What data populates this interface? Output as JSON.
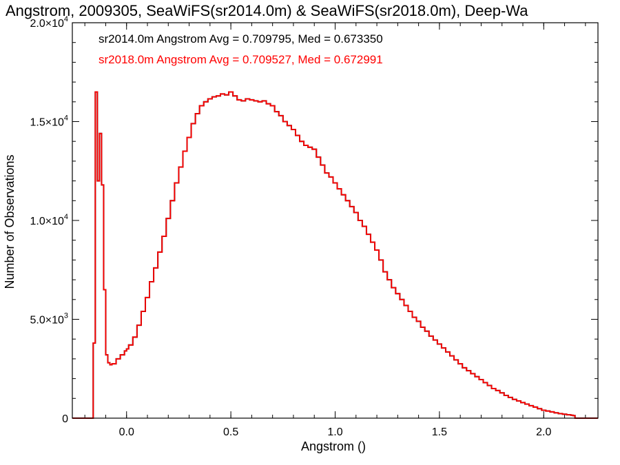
{
  "chart_data": {
    "type": "line",
    "title": "Angstrom, 2009305, SeaWiFS(sr2014.0m) & SeaWiFS(sr2018.0m), Deep-Wa",
    "xlabel": "Angstrom ()",
    "ylabel": "Number of Observations",
    "xlim": [
      -0.26,
      2.26
    ],
    "ylim": [
      0,
      20000
    ],
    "grid": false,
    "x_ticks": [
      {
        "value": 0.0,
        "label": "0.0"
      },
      {
        "value": 0.5,
        "label": "0.5"
      },
      {
        "value": 1.0,
        "label": "1.0"
      },
      {
        "value": 1.5,
        "label": "1.5"
      },
      {
        "value": 2.0,
        "label": "2.0"
      }
    ],
    "y_ticks": [
      {
        "value": 0,
        "mantissa": "0",
        "exponent": ""
      },
      {
        "value": 5000,
        "mantissa": "5.0×10",
        "exponent": "3"
      },
      {
        "value": 10000,
        "mantissa": "1.0×10",
        "exponent": "4"
      },
      {
        "value": 15000,
        "mantissa": "1.5×10",
        "exponent": "4"
      },
      {
        "value": 20000,
        "mantissa": "2.0×10",
        "exponent": "4"
      }
    ],
    "annotations": [
      {
        "text": "sr2014.0m Angstrom Avg = 0.709795, Med = 0.673350",
        "color": "#000000"
      },
      {
        "text": "sr2018.0m Angstrom Avg = 0.709527, Med = 0.672991",
        "color": "#ff0000"
      }
    ],
    "series": [
      {
        "color": "#000000",
        "x": [
          -0.26,
          -0.16,
          -0.15,
          -0.14,
          -0.13,
          -0.12,
          -0.11,
          -0.1,
          -0.09,
          -0.08,
          -0.07,
          -0.05,
          -0.03,
          -0.01,
          0.0,
          0.01,
          0.03,
          0.05,
          0.07,
          0.09,
          0.11,
          0.13,
          0.15,
          0.17,
          0.19,
          0.21,
          0.23,
          0.25,
          0.27,
          0.29,
          0.31,
          0.33,
          0.35,
          0.37,
          0.39,
          0.41,
          0.43,
          0.45,
          0.47,
          0.49,
          0.51,
          0.53,
          0.55,
          0.57,
          0.59,
          0.61,
          0.63,
          0.65,
          0.67,
          0.69,
          0.71,
          0.73,
          0.75,
          0.77,
          0.79,
          0.81,
          0.83,
          0.85,
          0.87,
          0.89,
          0.91,
          0.93,
          0.95,
          0.97,
          0.99,
          1.01,
          1.03,
          1.05,
          1.07,
          1.09,
          1.11,
          1.13,
          1.15,
          1.17,
          1.19,
          1.21,
          1.23,
          1.25,
          1.27,
          1.29,
          1.31,
          1.33,
          1.35,
          1.37,
          1.39,
          1.41,
          1.43,
          1.45,
          1.47,
          1.49,
          1.51,
          1.53,
          1.55,
          1.57,
          1.59,
          1.61,
          1.63,
          1.65,
          1.67,
          1.69,
          1.71,
          1.73,
          1.75,
          1.77,
          1.79,
          1.81,
          1.83,
          1.85,
          1.87,
          1.89,
          1.91,
          1.93,
          1.95,
          1.97,
          1.99,
          2.01,
          2.03,
          2.05,
          2.07,
          2.09,
          2.11,
          2.13,
          2.14,
          2.15,
          2.26
        ],
        "y": [
          0,
          3800,
          16500,
          12000,
          14400,
          11800,
          6500,
          3200,
          2800,
          2700,
          2750,
          3000,
          3200,
          3400,
          3500,
          3700,
          4100,
          4700,
          5400,
          6100,
          6900,
          7600,
          8400,
          9200,
          10100,
          11000,
          11900,
          12700,
          13500,
          14200,
          14900,
          15400,
          15800,
          16000,
          16150,
          16250,
          16300,
          16400,
          16350,
          16500,
          16300,
          16100,
          16050,
          16150,
          16100,
          16050,
          16000,
          16050,
          15900,
          15800,
          15500,
          15300,
          15000,
          14800,
          14600,
          14300,
          14000,
          13800,
          13700,
          13600,
          13200,
          12800,
          12400,
          12200,
          11900,
          11600,
          11300,
          11000,
          10700,
          10400,
          10000,
          9700,
          9300,
          8900,
          8500,
          8000,
          7400,
          7000,
          6600,
          6300,
          6000,
          5700,
          5400,
          5100,
          4900,
          4600,
          4400,
          4150,
          3950,
          3750,
          3550,
          3350,
          3150,
          2950,
          2750,
          2550,
          2400,
          2250,
          2100,
          1950,
          1800,
          1650,
          1500,
          1400,
          1280,
          1150,
          1050,
          950,
          870,
          790,
          710,
          630,
          560,
          480,
          400,
          360,
          320,
          270,
          230,
          200,
          170,
          150,
          130,
          0,
          0
        ]
      },
      {
        "color": "#ff0000",
        "x": [
          -0.26,
          -0.16,
          -0.15,
          -0.14,
          -0.13,
          -0.12,
          -0.11,
          -0.1,
          -0.09,
          -0.08,
          -0.07,
          -0.05,
          -0.03,
          -0.01,
          0.0,
          0.01,
          0.03,
          0.05,
          0.07,
          0.09,
          0.11,
          0.13,
          0.15,
          0.17,
          0.19,
          0.21,
          0.23,
          0.25,
          0.27,
          0.29,
          0.31,
          0.33,
          0.35,
          0.37,
          0.39,
          0.41,
          0.43,
          0.45,
          0.47,
          0.49,
          0.51,
          0.53,
          0.55,
          0.57,
          0.59,
          0.61,
          0.63,
          0.65,
          0.67,
          0.69,
          0.71,
          0.73,
          0.75,
          0.77,
          0.79,
          0.81,
          0.83,
          0.85,
          0.87,
          0.89,
          0.91,
          0.93,
          0.95,
          0.97,
          0.99,
          1.01,
          1.03,
          1.05,
          1.07,
          1.09,
          1.11,
          1.13,
          1.15,
          1.17,
          1.19,
          1.21,
          1.23,
          1.25,
          1.27,
          1.29,
          1.31,
          1.33,
          1.35,
          1.37,
          1.39,
          1.41,
          1.43,
          1.45,
          1.47,
          1.49,
          1.51,
          1.53,
          1.55,
          1.57,
          1.59,
          1.61,
          1.63,
          1.65,
          1.67,
          1.69,
          1.71,
          1.73,
          1.75,
          1.77,
          1.79,
          1.81,
          1.83,
          1.85,
          1.87,
          1.89,
          1.91,
          1.93,
          1.95,
          1.97,
          1.99,
          2.01,
          2.03,
          2.05,
          2.07,
          2.09,
          2.11,
          2.13,
          2.14,
          2.15,
          2.26
        ],
        "y": [
          0,
          3800,
          16500,
          12000,
          14400,
          11800,
          6500,
          3200,
          2800,
          2700,
          2750,
          3000,
          3200,
          3400,
          3500,
          3700,
          4100,
          4700,
          5400,
          6100,
          6900,
          7600,
          8400,
          9200,
          10100,
          11000,
          11900,
          12700,
          13500,
          14200,
          14900,
          15400,
          15800,
          16000,
          16150,
          16250,
          16300,
          16400,
          16350,
          16500,
          16300,
          16100,
          16050,
          16150,
          16100,
          16050,
          16000,
          16050,
          15900,
          15800,
          15500,
          15300,
          15000,
          14800,
          14600,
          14300,
          14000,
          13800,
          13700,
          13600,
          13200,
          12800,
          12400,
          12200,
          11900,
          11600,
          11300,
          11000,
          10700,
          10400,
          10000,
          9700,
          9300,
          8900,
          8500,
          8000,
          7400,
          7000,
          6600,
          6300,
          6000,
          5700,
          5400,
          5100,
          4900,
          4600,
          4400,
          4150,
          3950,
          3750,
          3550,
          3350,
          3150,
          2950,
          2750,
          2550,
          2400,
          2250,
          2100,
          1950,
          1800,
          1650,
          1500,
          1400,
          1280,
          1150,
          1050,
          950,
          870,
          790,
          710,
          630,
          560,
          480,
          400,
          360,
          320,
          270,
          230,
          200,
          170,
          150,
          130,
          0,
          0
        ]
      }
    ]
  }
}
